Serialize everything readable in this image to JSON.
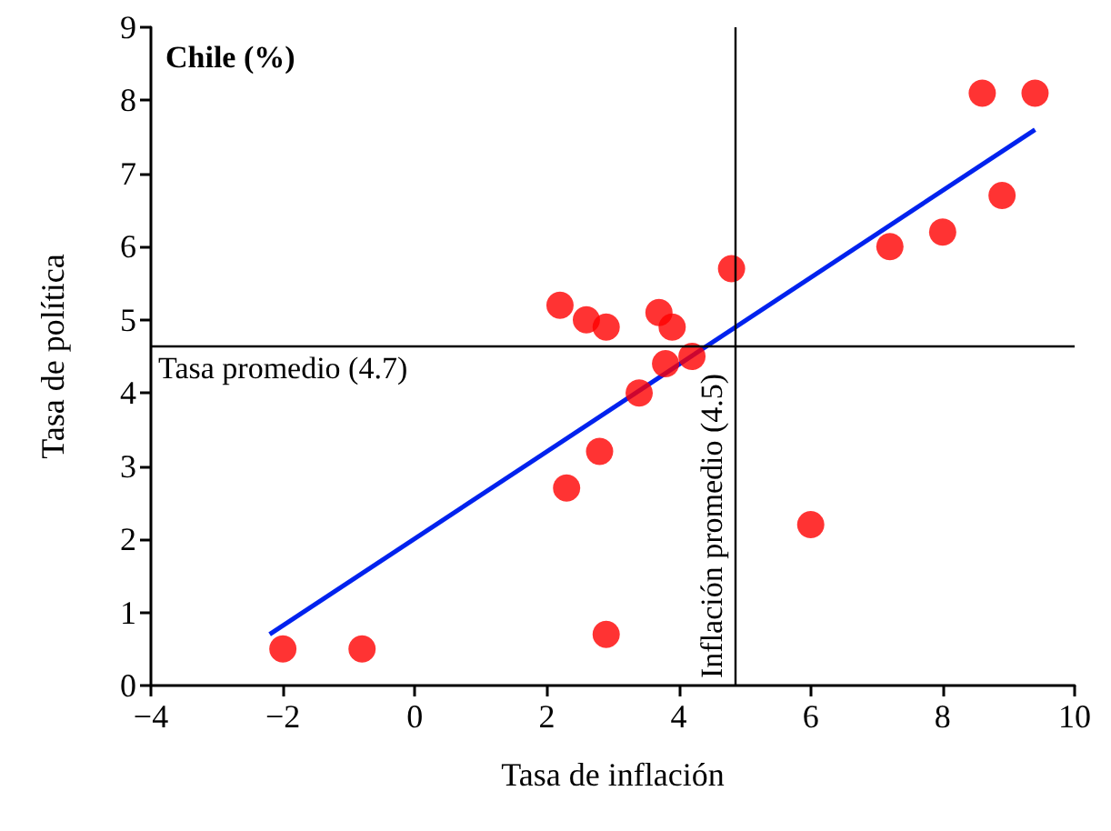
{
  "chart_data": {
    "type": "scatter",
    "title": "Chile (%)",
    "xlabel": "Tasa de inflación",
    "ylabel": "Tasa de política",
    "xlim": [
      -4,
      10
    ],
    "xticks": [
      {
        "value": -4,
        "label": "−4"
      },
      {
        "value": -2,
        "label": "−2"
      },
      0,
      2,
      4,
      6,
      8,
      10
    ],
    "ylim": [
      0,
      9
    ],
    "yticks": [
      0,
      1,
      2,
      3,
      4,
      5,
      6,
      7,
      8,
      9
    ],
    "grid": false,
    "marker": "circle",
    "series": [
      {
        "color": "#ff0000",
        "x": [
          -2.0,
          -0.8,
          2.2,
          2.6,
          2.9,
          3.7,
          3.9,
          3.8,
          4.2,
          3.4,
          2.8,
          2.3,
          2.9,
          4.8,
          6.0,
          7.2,
          8.0,
          8.9,
          8.6,
          9.4
        ],
        "values": [
          0.5,
          0.5,
          5.2,
          5.0,
          4.9,
          5.1,
          4.9,
          4.4,
          4.5,
          4.0,
          3.2,
          2.7,
          0.7,
          5.7,
          2.2,
          6.0,
          6.2,
          6.7,
          8.1,
          8.1
        ]
      },
      {
        "type": "line",
        "color": "#0022ee",
        "marker": "none",
        "x": [
          -2.2,
          9.4
        ],
        "values": [
          0.7,
          7.6
        ]
      }
    ],
    "ref_lines": [
      {
        "axis": "y",
        "value": 4.65,
        "label": "Tasa promedio (4.7)",
        "color": "#000000"
      },
      {
        "axis": "x",
        "value": 4.85,
        "label": "Inflación promedio (4.5)",
        "color": "#000000"
      }
    ]
  }
}
